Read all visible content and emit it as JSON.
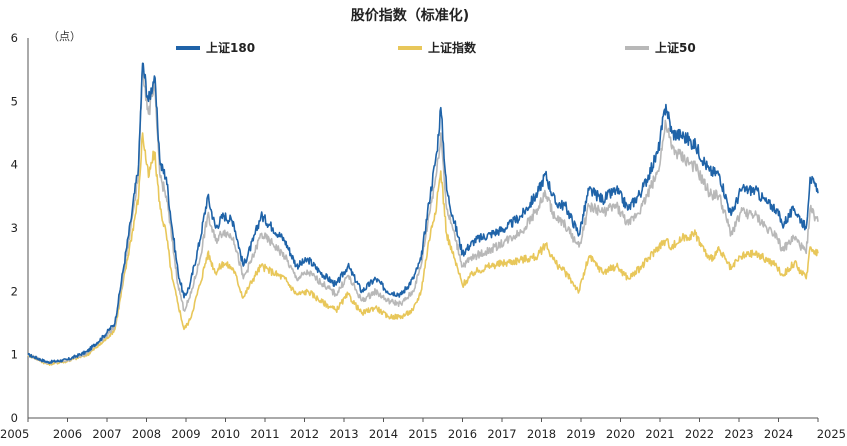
{
  "chart_data": {
    "type": "line",
    "title": "股价指数（标准化)",
    "unit_label": "（点）",
    "xlabel": "",
    "ylabel": "",
    "ylim": [
      0,
      6
    ],
    "yticks": [
      "0",
      "1",
      "2",
      "3",
      "4",
      "5",
      "6"
    ],
    "xlim": [
      2005,
      2025
    ],
    "xticks": [
      "2005",
      "2006",
      "2007",
      "2008",
      "2009",
      "2010",
      "2011",
      "2012",
      "2013",
      "2014",
      "2015",
      "2016",
      "2017",
      "2018",
      "2019",
      "2020",
      "2021",
      "2022",
      "2023",
      "2024",
      "2025"
    ],
    "grid": false,
    "legend_position": "top",
    "series": [
      {
        "name": "上证180",
        "color": "#1f63a8",
        "points": [
          [
            2005.0,
            1.0
          ],
          [
            2005.5,
            0.88
          ],
          [
            2006.0,
            0.92
          ],
          [
            2006.5,
            1.05
          ],
          [
            2006.9,
            1.28
          ],
          [
            2007.2,
            1.5
          ],
          [
            2007.4,
            2.3
          ],
          [
            2007.6,
            3.1
          ],
          [
            2007.8,
            4.0
          ],
          [
            2007.9,
            5.6
          ],
          [
            2008.05,
            5.0
          ],
          [
            2008.2,
            5.4
          ],
          [
            2008.35,
            4.0
          ],
          [
            2008.5,
            3.8
          ],
          [
            2008.65,
            3.0
          ],
          [
            2008.8,
            2.3
          ],
          [
            2008.95,
            1.9
          ],
          [
            2009.1,
            2.1
          ],
          [
            2009.35,
            2.8
          ],
          [
            2009.55,
            3.5
          ],
          [
            2009.75,
            3.0
          ],
          [
            2009.95,
            3.2
          ],
          [
            2010.2,
            3.1
          ],
          [
            2010.45,
            2.4
          ],
          [
            2010.7,
            2.8
          ],
          [
            2010.9,
            3.2
          ],
          [
            2011.2,
            3.0
          ],
          [
            2011.5,
            2.8
          ],
          [
            2011.8,
            2.4
          ],
          [
            2012.1,
            2.5
          ],
          [
            2012.4,
            2.3
          ],
          [
            2012.8,
            2.1
          ],
          [
            2013.1,
            2.4
          ],
          [
            2013.45,
            2.0
          ],
          [
            2013.8,
            2.2
          ],
          [
            2014.1,
            2.0
          ],
          [
            2014.45,
            1.95
          ],
          [
            2014.75,
            2.2
          ],
          [
            2014.95,
            2.5
          ],
          [
            2015.15,
            3.4
          ],
          [
            2015.35,
            4.2
          ],
          [
            2015.45,
            4.9
          ],
          [
            2015.6,
            3.6
          ],
          [
            2015.75,
            3.2
          ],
          [
            2016.0,
            2.6
          ],
          [
            2016.3,
            2.8
          ],
          [
            2016.7,
            2.9
          ],
          [
            2017.1,
            3.0
          ],
          [
            2017.5,
            3.2
          ],
          [
            2017.9,
            3.55
          ],
          [
            2018.1,
            3.85
          ],
          [
            2018.35,
            3.4
          ],
          [
            2018.6,
            3.35
          ],
          [
            2018.95,
            2.9
          ],
          [
            2019.2,
            3.6
          ],
          [
            2019.55,
            3.45
          ],
          [
            2019.9,
            3.6
          ],
          [
            2020.2,
            3.3
          ],
          [
            2020.55,
            3.6
          ],
          [
            2020.95,
            4.2
          ],
          [
            2021.15,
            4.95
          ],
          [
            2021.3,
            4.5
          ],
          [
            2021.6,
            4.45
          ],
          [
            2021.9,
            4.3
          ],
          [
            2022.25,
            3.9
          ],
          [
            2022.5,
            3.85
          ],
          [
            2022.8,
            3.2
          ],
          [
            2023.05,
            3.6
          ],
          [
            2023.4,
            3.6
          ],
          [
            2023.7,
            3.4
          ],
          [
            2023.95,
            3.3
          ],
          [
            2024.1,
            3.05
          ],
          [
            2024.4,
            3.3
          ],
          [
            2024.7,
            3.0
          ],
          [
            2024.8,
            3.8
          ],
          [
            2025.0,
            3.55
          ]
        ]
      },
      {
        "name": "上证指数",
        "color": "#e8c75a",
        "points": [
          [
            2005.0,
            1.0
          ],
          [
            2005.5,
            0.85
          ],
          [
            2006.0,
            0.9
          ],
          [
            2006.5,
            1.0
          ],
          [
            2006.9,
            1.2
          ],
          [
            2007.2,
            1.4
          ],
          [
            2007.4,
            2.1
          ],
          [
            2007.6,
            2.8
          ],
          [
            2007.8,
            3.5
          ],
          [
            2007.9,
            4.5
          ],
          [
            2008.05,
            3.8
          ],
          [
            2008.2,
            4.2
          ],
          [
            2008.35,
            3.3
          ],
          [
            2008.5,
            2.9
          ],
          [
            2008.65,
            2.2
          ],
          [
            2008.8,
            1.8
          ],
          [
            2008.95,
            1.4
          ],
          [
            2009.1,
            1.55
          ],
          [
            2009.35,
            2.1
          ],
          [
            2009.55,
            2.6
          ],
          [
            2009.75,
            2.3
          ],
          [
            2009.95,
            2.45
          ],
          [
            2010.2,
            2.35
          ],
          [
            2010.45,
            1.9
          ],
          [
            2010.7,
            2.2
          ],
          [
            2010.9,
            2.4
          ],
          [
            2011.2,
            2.3
          ],
          [
            2011.5,
            2.2
          ],
          [
            2011.8,
            1.95
          ],
          [
            2012.1,
            2.0
          ],
          [
            2012.4,
            1.85
          ],
          [
            2012.8,
            1.7
          ],
          [
            2013.1,
            1.95
          ],
          [
            2013.45,
            1.65
          ],
          [
            2013.8,
            1.75
          ],
          [
            2014.1,
            1.6
          ],
          [
            2014.45,
            1.6
          ],
          [
            2014.75,
            1.7
          ],
          [
            2014.95,
            2.0
          ],
          [
            2015.15,
            2.8
          ],
          [
            2015.35,
            3.4
          ],
          [
            2015.45,
            3.9
          ],
          [
            2015.6,
            2.9
          ],
          [
            2015.75,
            2.6
          ],
          [
            2016.0,
            2.1
          ],
          [
            2016.3,
            2.3
          ],
          [
            2016.7,
            2.4
          ],
          [
            2017.1,
            2.45
          ],
          [
            2017.5,
            2.5
          ],
          [
            2017.9,
            2.55
          ],
          [
            2018.1,
            2.75
          ],
          [
            2018.35,
            2.45
          ],
          [
            2018.6,
            2.3
          ],
          [
            2018.95,
            2.0
          ],
          [
            2019.2,
            2.55
          ],
          [
            2019.55,
            2.3
          ],
          [
            2019.9,
            2.4
          ],
          [
            2020.2,
            2.2
          ],
          [
            2020.55,
            2.4
          ],
          [
            2020.95,
            2.7
          ],
          [
            2021.15,
            2.8
          ],
          [
            2021.3,
            2.7
          ],
          [
            2021.6,
            2.85
          ],
          [
            2021.9,
            2.9
          ],
          [
            2022.25,
            2.5
          ],
          [
            2022.5,
            2.65
          ],
          [
            2022.8,
            2.35
          ],
          [
            2023.05,
            2.55
          ],
          [
            2023.4,
            2.6
          ],
          [
            2023.7,
            2.5
          ],
          [
            2023.95,
            2.4
          ],
          [
            2024.1,
            2.25
          ],
          [
            2024.4,
            2.45
          ],
          [
            2024.7,
            2.2
          ],
          [
            2024.8,
            2.7
          ],
          [
            2025.0,
            2.6
          ]
        ]
      },
      {
        "name": "上证50",
        "color": "#b8b8b8",
        "points": [
          [
            2005.0,
            1.0
          ],
          [
            2005.5,
            0.87
          ],
          [
            2006.0,
            0.91
          ],
          [
            2006.5,
            1.03
          ],
          [
            2006.9,
            1.25
          ],
          [
            2007.2,
            1.45
          ],
          [
            2007.4,
            2.2
          ],
          [
            2007.6,
            3.0
          ],
          [
            2007.8,
            3.9
          ],
          [
            2007.9,
            5.55
          ],
          [
            2008.05,
            4.8
          ],
          [
            2008.2,
            5.2
          ],
          [
            2008.35,
            3.8
          ],
          [
            2008.5,
            3.5
          ],
          [
            2008.65,
            2.8
          ],
          [
            2008.8,
            2.1
          ],
          [
            2008.95,
            1.7
          ],
          [
            2009.1,
            1.9
          ],
          [
            2009.35,
            2.5
          ],
          [
            2009.55,
            3.2
          ],
          [
            2009.75,
            2.8
          ],
          [
            2009.95,
            2.95
          ],
          [
            2010.2,
            2.85
          ],
          [
            2010.45,
            2.2
          ],
          [
            2010.7,
            2.55
          ],
          [
            2010.9,
            2.9
          ],
          [
            2011.2,
            2.75
          ],
          [
            2011.5,
            2.55
          ],
          [
            2011.8,
            2.2
          ],
          [
            2012.1,
            2.3
          ],
          [
            2012.4,
            2.15
          ],
          [
            2012.8,
            1.95
          ],
          [
            2013.1,
            2.25
          ],
          [
            2013.45,
            1.85
          ],
          [
            2013.8,
            2.0
          ],
          [
            2014.1,
            1.85
          ],
          [
            2014.45,
            1.8
          ],
          [
            2014.75,
            2.0
          ],
          [
            2014.95,
            2.4
          ],
          [
            2015.15,
            3.2
          ],
          [
            2015.35,
            3.9
          ],
          [
            2015.45,
            4.5
          ],
          [
            2015.6,
            3.3
          ],
          [
            2015.75,
            3.0
          ],
          [
            2016.0,
            2.4
          ],
          [
            2016.3,
            2.55
          ],
          [
            2016.7,
            2.65
          ],
          [
            2017.1,
            2.8
          ],
          [
            2017.5,
            2.95
          ],
          [
            2017.9,
            3.3
          ],
          [
            2018.1,
            3.55
          ],
          [
            2018.35,
            3.15
          ],
          [
            2018.6,
            3.05
          ],
          [
            2018.95,
            2.7
          ],
          [
            2019.2,
            3.35
          ],
          [
            2019.55,
            3.25
          ],
          [
            2019.9,
            3.35
          ],
          [
            2020.2,
            3.05
          ],
          [
            2020.55,
            3.35
          ],
          [
            2020.95,
            3.9
          ],
          [
            2021.15,
            4.65
          ],
          [
            2021.3,
            4.25
          ],
          [
            2021.6,
            4.1
          ],
          [
            2021.9,
            3.95
          ],
          [
            2022.25,
            3.55
          ],
          [
            2022.5,
            3.5
          ],
          [
            2022.8,
            2.9
          ],
          [
            2023.05,
            3.25
          ],
          [
            2023.4,
            3.2
          ],
          [
            2023.7,
            3.0
          ],
          [
            2023.95,
            2.9
          ],
          [
            2024.1,
            2.65
          ],
          [
            2024.4,
            2.85
          ],
          [
            2024.7,
            2.6
          ],
          [
            2024.8,
            3.3
          ],
          [
            2025.0,
            3.1
          ]
        ]
      }
    ]
  }
}
